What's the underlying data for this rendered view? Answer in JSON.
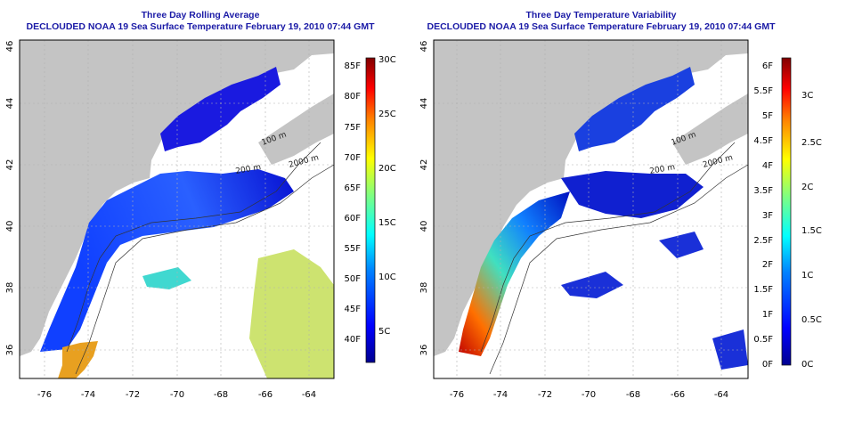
{
  "left_panel": {
    "title": "Three Day Rolling Average",
    "subtitle": "DECLOUDED NOAA 19 Sea Surface Temperature February 19, 2010 07:44 GMT",
    "lat_ticks": [
      "36",
      "38",
      "40",
      "42",
      "44",
      "46"
    ],
    "lon_ticks": [
      "-76",
      "-74",
      "-72",
      "-70",
      "-68",
      "-66",
      "-64"
    ],
    "contour_labels": [
      "100 m",
      "2000 m",
      "200 m"
    ],
    "colorbar": {
      "left_labels": [
        "85F",
        "80F",
        "75F",
        "70F",
        "65F",
        "60F",
        "55F",
        "50F",
        "45F",
        "40F"
      ],
      "right_labels": [
        "30C",
        "25C",
        "20C",
        "15C",
        "10C",
        "5C"
      ]
    }
  },
  "right_panel": {
    "title": "Three Day Temperature Variability",
    "subtitle": "DECLOUDED NOAA 19 Sea Surface Temperature February 19, 2010 07:44 GMT",
    "lat_ticks": [
      "36",
      "38",
      "40",
      "42",
      "44",
      "46"
    ],
    "lon_ticks": [
      "-76",
      "-74",
      "-72",
      "-70",
      "-68",
      "-66",
      "-64"
    ],
    "contour_labels": [
      "100 m",
      "2000 m",
      "200 m"
    ],
    "colorbar": {
      "left_labels": [
        "6F",
        "5.5F",
        "5F",
        "4.5F",
        "4F",
        "3.5F",
        "3F",
        "2.5F",
        "2F",
        "1.5F",
        "1F",
        "0.5F",
        "0F"
      ],
      "right_labels": [
        "3C",
        "2.5C",
        "2C",
        "1.5C",
        "1C",
        "0.5C",
        "0C"
      ]
    }
  },
  "colors": {
    "land": "#c4c4c4",
    "ocean_nodata": "#ffffff",
    "title_text": "#1a1aa6",
    "colormap": [
      "#00008f",
      "#0000ff",
      "#0080ff",
      "#00ffff",
      "#80ff80",
      "#ffff00",
      "#ff8000",
      "#ff0000",
      "#800000"
    ]
  }
}
